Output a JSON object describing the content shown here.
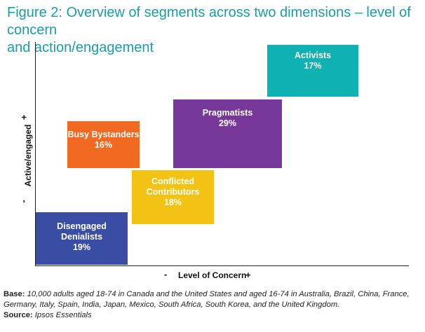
{
  "title_line1": "Figure 2: Overview of segments across two dimensions – level of concern",
  "title_line2": "and action/engagement",
  "axes": {
    "y_label": "Active/engaged",
    "y_plus": "+",
    "y_minus": "-",
    "x_label": "Level of Concern",
    "x_minus": "-",
    "x_plus": "+"
  },
  "segments": [
    {
      "name": "Activists",
      "percent": "17%",
      "color": "#0fb1b3"
    },
    {
      "name": "Pragmatists",
      "percent": "29%",
      "color": "#78389a"
    },
    {
      "name": "Busy Bystanders",
      "percent": "16%",
      "color": "#f26a21"
    },
    {
      "name": "Conflicted Contributors",
      "name_line1": "Conflicted",
      "name_line2": "Contributors",
      "percent": "18%",
      "color": "#f2c314"
    },
    {
      "name": "Disengaged Denialists",
      "name_line1": "Disengaged",
      "name_line2": "Denialists",
      "percent": "19%",
      "color": "#3a4da5"
    }
  ],
  "footnote": {
    "base_label": "Base:",
    "base_text": "10,000 adults aged 18-74 in Canada and the United States and aged 16-74 in Australia, Brazil, China, France, Germany, Italy, Spain, India, Japan, Mexico, South Africa, South Korea, and the United Kingdom.",
    "source_label": "Source:",
    "source_text": "Ipsos Essentials"
  }
}
